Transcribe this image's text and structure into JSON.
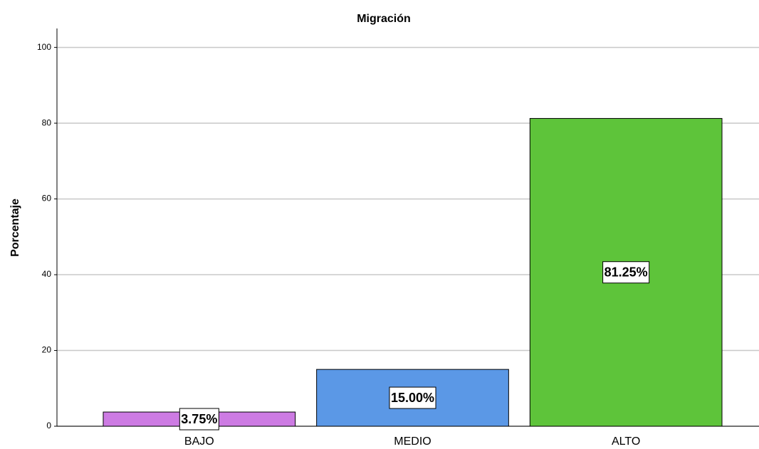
{
  "chart_data": {
    "type": "bar",
    "title": "Migración",
    "y_label": "Porcentaje",
    "categories": [
      "BAJO",
      "MEDIO",
      "ALTO"
    ],
    "values": [
      3.75,
      15.0,
      81.25
    ],
    "value_labels": [
      "3.75%",
      "15.00%",
      "81.25%"
    ],
    "colors": [
      "#cd7be3",
      "#5b98e6",
      "#5ec43a"
    ],
    "ylim": [
      0,
      105
    ],
    "yticks": [
      0,
      20,
      40,
      60,
      80,
      100
    ],
    "grid": true
  }
}
